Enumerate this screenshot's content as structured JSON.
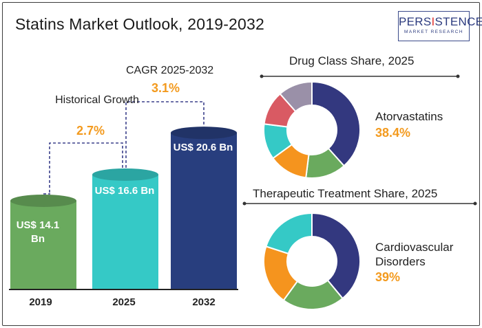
{
  "title": "Statins Market Outlook, 2019-2032",
  "logo": {
    "main_pre": "PERS",
    "main_accent": "I",
    "main_post": "STENCE",
    "sub": "MARKET RESEARCH"
  },
  "chart_data": [
    {
      "type": "bar",
      "categories": [
        "2019",
        "2025",
        "2032"
      ],
      "values": [
        14.1,
        16.6,
        20.6
      ],
      "value_labels": [
        "US$ 14.1 Bn",
        "US$ 16.6 Bn",
        "US$ 20.6 Bn"
      ],
      "colors": [
        "#6aaa5e",
        "#35c9c6",
        "#283e7e"
      ],
      "annotations": [
        {
          "label": "Historical Growth",
          "value": "2.7%"
        },
        {
          "label": "CAGR 2025-2032",
          "value": "3.1%"
        }
      ]
    },
    {
      "type": "pie",
      "title": "Drug Class Share, 2025",
      "highlight_label": "Atorvastatins",
      "highlight_value": "38.4%",
      "values": [
        38.4,
        13.6,
        13.0,
        12.0,
        11.5,
        11.5
      ],
      "colors": [
        "#33387f",
        "#6aaa5e",
        "#f5941e",
        "#35c9c6",
        "#d95a63",
        "#9a90a8"
      ]
    },
    {
      "type": "pie",
      "title": "Therapeutic Treatment Share, 2025",
      "highlight_label": "Cardiovascular Disorders",
      "highlight_value": "39%",
      "values": [
        39,
        21,
        20,
        20
      ],
      "colors": [
        "#33387f",
        "#6aaa5e",
        "#f5941e",
        "#35c9c6"
      ]
    }
  ]
}
